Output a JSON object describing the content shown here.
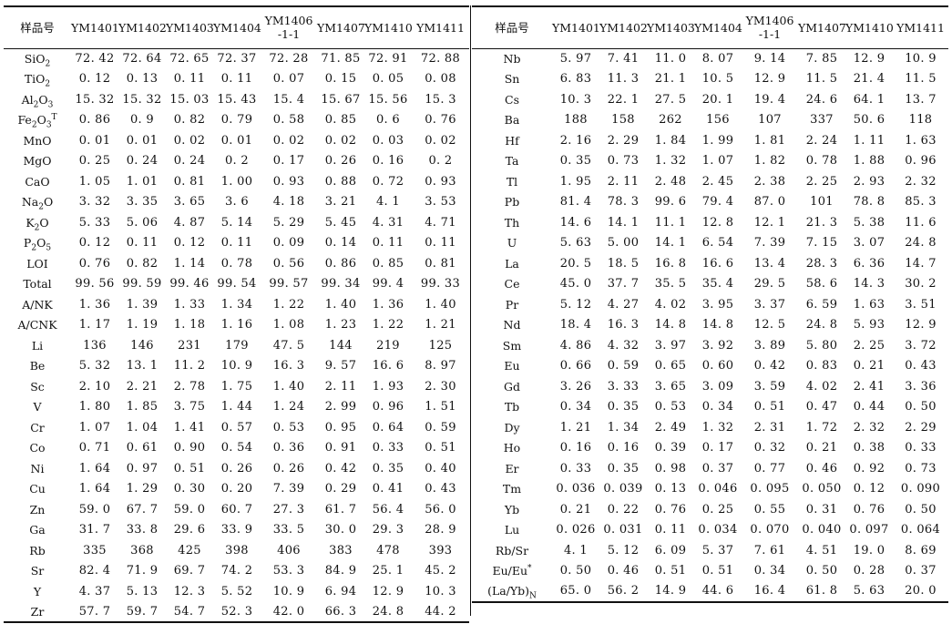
{
  "header_label": "样品号",
  "samples": [
    "YM1401",
    "YM1402",
    "YM1403",
    "YM1404",
    "YM1406\n-1-1",
    "YM1407",
    "YM1410",
    "YM1411"
  ],
  "left_rows": [
    {
      "label": "SiO2",
      "values": [
        "72. 42",
        "72. 64",
        "72. 65",
        "72. 37",
        "72. 28",
        "71. 85",
        "72. 91",
        "72. 88"
      ]
    },
    {
      "label": "TiO2",
      "values": [
        "0. 12",
        "0. 13",
        "0. 11",
        "0. 11",
        "0. 07",
        "0. 15",
        "0. 05",
        "0. 08"
      ]
    },
    {
      "label": "Al2O3",
      "values": [
        "15. 32",
        "15. 32",
        "15. 03",
        "15. 43",
        "15. 4",
        "15. 67",
        "15. 56",
        "15. 3"
      ]
    },
    {
      "label": "Fe2O3T",
      "values": [
        "0. 86",
        "0. 9",
        "0. 82",
        "0. 79",
        "0. 58",
        "0. 85",
        "0. 6",
        "0. 76"
      ]
    },
    {
      "label": "MnO",
      "values": [
        "0. 01",
        "0. 01",
        "0. 02",
        "0. 01",
        "0. 02",
        "0. 02",
        "0. 03",
        "0. 02"
      ]
    },
    {
      "label": "MgO",
      "values": [
        "0. 25",
        "0. 24",
        "0. 24",
        "0. 2",
        "0. 17",
        "0. 26",
        "0. 16",
        "0. 2"
      ]
    },
    {
      "label": "CaO",
      "values": [
        "1. 05",
        "1. 01",
        "0. 81",
        "1. 00",
        "0. 93",
        "0. 88",
        "0. 72",
        "0. 93"
      ]
    },
    {
      "label": "Na2O",
      "values": [
        "3. 32",
        "3. 35",
        "3. 65",
        "3. 6",
        "4. 18",
        "3. 21",
        "4. 1",
        "3. 53"
      ]
    },
    {
      "label": "K2O",
      "values": [
        "5. 33",
        "5. 06",
        "4. 87",
        "5. 14",
        "5. 29",
        "5. 45",
        "4. 31",
        "4. 71"
      ]
    },
    {
      "label": "P2O5",
      "values": [
        "0. 12",
        "0. 11",
        "0. 12",
        "0. 11",
        "0. 09",
        "0. 14",
        "0. 11",
        "0. 11"
      ]
    },
    {
      "label": "LOI",
      "values": [
        "0. 76",
        "0. 82",
        "1. 14",
        "0. 78",
        "0. 56",
        "0. 86",
        "0. 85",
        "0. 81"
      ]
    },
    {
      "label": "Total",
      "values": [
        "99. 56",
        "99. 59",
        "99. 46",
        "99. 54",
        "99. 57",
        "99. 34",
        "99. 4",
        "99. 33"
      ]
    },
    {
      "label": "A/NK",
      "values": [
        "1. 36",
        "1. 39",
        "1. 33",
        "1. 34",
        "1. 22",
        "1. 40",
        "1. 36",
        "1. 40"
      ]
    },
    {
      "label": "A/CNK",
      "values": [
        "1. 17",
        "1. 19",
        "1. 18",
        "1. 16",
        "1. 08",
        "1. 23",
        "1. 22",
        "1. 21"
      ]
    },
    {
      "label": "Li",
      "values": [
        "136",
        "146",
        "231",
        "179",
        "47. 5",
        "144",
        "219",
        "125"
      ]
    },
    {
      "label": "Be",
      "values": [
        "5. 32",
        "13. 1",
        "11. 2",
        "10. 9",
        "16. 3",
        "9. 57",
        "16. 6",
        "8. 97"
      ]
    },
    {
      "label": "Sc",
      "values": [
        "2. 10",
        "2. 21",
        "2. 78",
        "1. 75",
        "1. 40",
        "2. 11",
        "1. 93",
        "2. 30"
      ]
    },
    {
      "label": "V",
      "values": [
        "1. 80",
        "1. 85",
        "3. 75",
        "1. 44",
        "1. 24",
        "2. 99",
        "0. 96",
        "1. 51"
      ]
    },
    {
      "label": "Cr",
      "values": [
        "1. 07",
        "1. 04",
        "1. 41",
        "0. 57",
        "0. 53",
        "0. 95",
        "0. 64",
        "0. 59"
      ]
    },
    {
      "label": "Co",
      "values": [
        "0. 71",
        "0. 61",
        "0. 90",
        "0. 54",
        "0. 36",
        "0. 91",
        "0. 33",
        "0. 51"
      ]
    },
    {
      "label": "Ni",
      "values": [
        "1. 64",
        "0. 97",
        "0. 51",
        "0. 26",
        "0. 26",
        "0. 42",
        "0. 35",
        "0. 40"
      ]
    },
    {
      "label": "Cu",
      "values": [
        "1. 64",
        "1. 29",
        "0. 30",
        "0. 20",
        "7. 39",
        "0. 29",
        "0. 41",
        "0. 43"
      ]
    },
    {
      "label": "Zn",
      "values": [
        "59. 0",
        "67. 7",
        "59. 0",
        "60. 7",
        "27. 3",
        "61. 7",
        "56. 4",
        "56. 0"
      ]
    },
    {
      "label": "Ga",
      "values": [
        "31. 7",
        "33. 8",
        "29. 6",
        "33. 9",
        "33. 5",
        "30. 0",
        "29. 3",
        "28. 9"
      ]
    },
    {
      "label": "Rb",
      "values": [
        "335",
        "368",
        "425",
        "398",
        "406",
        "383",
        "478",
        "393"
      ]
    },
    {
      "label": "Sr",
      "values": [
        "82. 4",
        "71. 9",
        "69. 7",
        "74. 2",
        "53. 3",
        "84. 9",
        "25. 1",
        "45. 2"
      ]
    },
    {
      "label": "Y",
      "values": [
        "4. 37",
        "5. 13",
        "12. 3",
        "5. 52",
        "10. 9",
        "6. 94",
        "12. 9",
        "10. 3"
      ]
    },
    {
      "label": "Zr",
      "values": [
        "57. 7",
        "59. 7",
        "54. 7",
        "52. 3",
        "42. 0",
        "66. 3",
        "24. 8",
        "44. 2"
      ]
    }
  ],
  "right_rows": [
    {
      "label": "Nb",
      "values": [
        "5. 97",
        "7. 41",
        "11. 0",
        "8. 07",
        "9. 14",
        "7. 85",
        "12. 9",
        "10. 9"
      ]
    },
    {
      "label": "Sn",
      "values": [
        "6. 83",
        "11. 3",
        "21. 1",
        "10. 5",
        "12. 9",
        "11. 5",
        "21. 4",
        "11. 5"
      ]
    },
    {
      "label": "Cs",
      "values": [
        "10. 3",
        "22. 1",
        "27. 5",
        "20. 1",
        "19. 4",
        "24. 6",
        "64. 1",
        "13. 7"
      ]
    },
    {
      "label": "Ba",
      "values": [
        "188",
        "158",
        "262",
        "156",
        "107",
        "337",
        "50. 6",
        "118"
      ]
    },
    {
      "label": "Hf",
      "values": [
        "2. 16",
        "2. 29",
        "1. 84",
        "1. 99",
        "1. 81",
        "2. 24",
        "1. 11",
        "1. 63"
      ]
    },
    {
      "label": "Ta",
      "values": [
        "0. 35",
        "0. 73",
        "1. 32",
        "1. 07",
        "1. 82",
        "0. 78",
        "1. 88",
        "0. 96"
      ]
    },
    {
      "label": "Tl",
      "values": [
        "1. 95",
        "2. 11",
        "2. 48",
        "2. 45",
        "2. 38",
        "2. 25",
        "2. 93",
        "2. 32"
      ]
    },
    {
      "label": "Pb",
      "values": [
        "81. 4",
        "78. 3",
        "99. 6",
        "79. 4",
        "87. 0",
        "101",
        "78. 8",
        "85. 3"
      ]
    },
    {
      "label": "Th",
      "values": [
        "14. 6",
        "14. 1",
        "11. 1",
        "12. 8",
        "12. 1",
        "21. 3",
        "5. 38",
        "11. 6"
      ]
    },
    {
      "label": "U",
      "values": [
        "5. 63",
        "5. 00",
        "14. 1",
        "6. 54",
        "7. 39",
        "7. 15",
        "3. 07",
        "24. 8"
      ]
    },
    {
      "label": "La",
      "values": [
        "20. 5",
        "18. 5",
        "16. 8",
        "16. 6",
        "13. 4",
        "28. 3",
        "6. 36",
        "14. 7"
      ]
    },
    {
      "label": "Ce",
      "values": [
        "45. 0",
        "37. 7",
        "35. 5",
        "35. 4",
        "29. 5",
        "58. 6",
        "14. 3",
        "30. 2"
      ]
    },
    {
      "label": "Pr",
      "values": [
        "5. 12",
        "4. 27",
        "4. 02",
        "3. 95",
        "3. 37",
        "6. 59",
        "1. 63",
        "3. 51"
      ]
    },
    {
      "label": "Nd",
      "values": [
        "18. 4",
        "16. 3",
        "14. 8",
        "14. 8",
        "12. 5",
        "24. 8",
        "5. 93",
        "12. 9"
      ]
    },
    {
      "label": "Sm",
      "values": [
        "4. 86",
        "4. 32",
        "3. 97",
        "3. 92",
        "3. 89",
        "5. 80",
        "2. 25",
        "3. 72"
      ]
    },
    {
      "label": "Eu",
      "values": [
        "0. 66",
        "0. 59",
        "0. 65",
        "0. 60",
        "0. 42",
        "0. 83",
        "0. 21",
        "0. 43"
      ]
    },
    {
      "label": "Gd",
      "values": [
        "3. 26",
        "3. 33",
        "3. 65",
        "3. 09",
        "3. 59",
        "4. 02",
        "2. 41",
        "3. 36"
      ]
    },
    {
      "label": "Tb",
      "values": [
        "0. 34",
        "0. 35",
        "0. 53",
        "0. 34",
        "0. 51",
        "0. 47",
        "0. 44",
        "0. 50"
      ]
    },
    {
      "label": "Dy",
      "values": [
        "1. 21",
        "1. 34",
        "2. 49",
        "1. 32",
        "2. 31",
        "1. 72",
        "2. 32",
        "2. 29"
      ]
    },
    {
      "label": "Ho",
      "values": [
        "0. 16",
        "0. 16",
        "0. 39",
        "0. 17",
        "0. 32",
        "0. 21",
        "0. 38",
        "0. 33"
      ]
    },
    {
      "label": "Er",
      "values": [
        "0. 33",
        "0. 35",
        "0. 98",
        "0. 37",
        "0. 77",
        "0. 46",
        "0. 92",
        "0. 73"
      ]
    },
    {
      "label": "Tm",
      "values": [
        "0. 036",
        "0. 039",
        "0. 13",
        "0. 046",
        "0. 095",
        "0. 050",
        "0. 12",
        "0. 090"
      ]
    },
    {
      "label": "Yb",
      "values": [
        "0. 21",
        "0. 22",
        "0. 76",
        "0. 25",
        "0. 55",
        "0. 31",
        "0. 76",
        "0. 50"
      ]
    },
    {
      "label": "Lu",
      "values": [
        "0. 026",
        "0. 031",
        "0. 11",
        "0. 034",
        "0. 070",
        "0. 040",
        "0. 097",
        "0. 064"
      ]
    },
    {
      "label": "Rb/Sr",
      "values": [
        "4. 1",
        "5. 12",
        "6. 09",
        "5. 37",
        "7. 61",
        "4. 51",
        "19. 0",
        "8. 69"
      ]
    },
    {
      "label": "Eu/Eu*",
      "values": [
        "0. 50",
        "0. 46",
        "0. 51",
        "0. 51",
        "0. 34",
        "0. 50",
        "0. 28",
        "0. 37"
      ]
    },
    {
      "label": "(La/Yb)N",
      "values": [
        "65. 0",
        "56. 2",
        "14. 9",
        "44. 6",
        "16. 4",
        "61. 8",
        "5. 63",
        "20. 0"
      ]
    }
  ]
}
